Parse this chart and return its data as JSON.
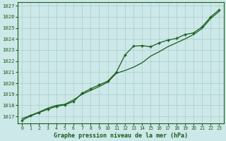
{
  "title": "Graphe pression niveau de la mer (hPa)",
  "bg_color": "#cde8e8",
  "grid_color": "#a8cccc",
  "line_color": "#1a5c1a",
  "marker_color": "#1a5c1a",
  "x_values": [
    0,
    1,
    2,
    3,
    4,
    5,
    6,
    7,
    8,
    9,
    10,
    11,
    12,
    13,
    14,
    15,
    16,
    17,
    18,
    19,
    20,
    21,
    22,
    23
  ],
  "y_series1": [
    1016.8,
    1017.1,
    1017.4,
    1017.75,
    1018.0,
    1018.1,
    1018.5,
    1019.0,
    1019.35,
    1019.7,
    1020.1,
    1020.9,
    1021.15,
    1021.45,
    1021.85,
    1022.45,
    1022.85,
    1023.3,
    1023.65,
    1024.0,
    1024.4,
    1024.95,
    1025.85,
    1026.5
  ],
  "y_series2": [
    1016.65,
    1017.05,
    1017.35,
    1017.65,
    1017.9,
    1018.05,
    1018.35,
    1019.1,
    1019.5,
    1019.85,
    1020.2,
    1021.0,
    1022.55,
    1023.35,
    1023.4,
    1023.3,
    1023.65,
    1023.9,
    1024.05,
    1024.4,
    1024.55,
    1025.1,
    1026.0,
    1026.65
  ],
  "ylim": [
    1016.4,
    1027.3
  ],
  "yticks": [
    1017,
    1018,
    1019,
    1020,
    1021,
    1022,
    1023,
    1024,
    1025,
    1026,
    1027
  ],
  "xlim": [
    -0.5,
    23.5
  ],
  "xticks": [
    0,
    1,
    2,
    3,
    4,
    5,
    6,
    7,
    8,
    9,
    10,
    11,
    12,
    13,
    14,
    15,
    16,
    17,
    18,
    19,
    20,
    21,
    22,
    23
  ]
}
